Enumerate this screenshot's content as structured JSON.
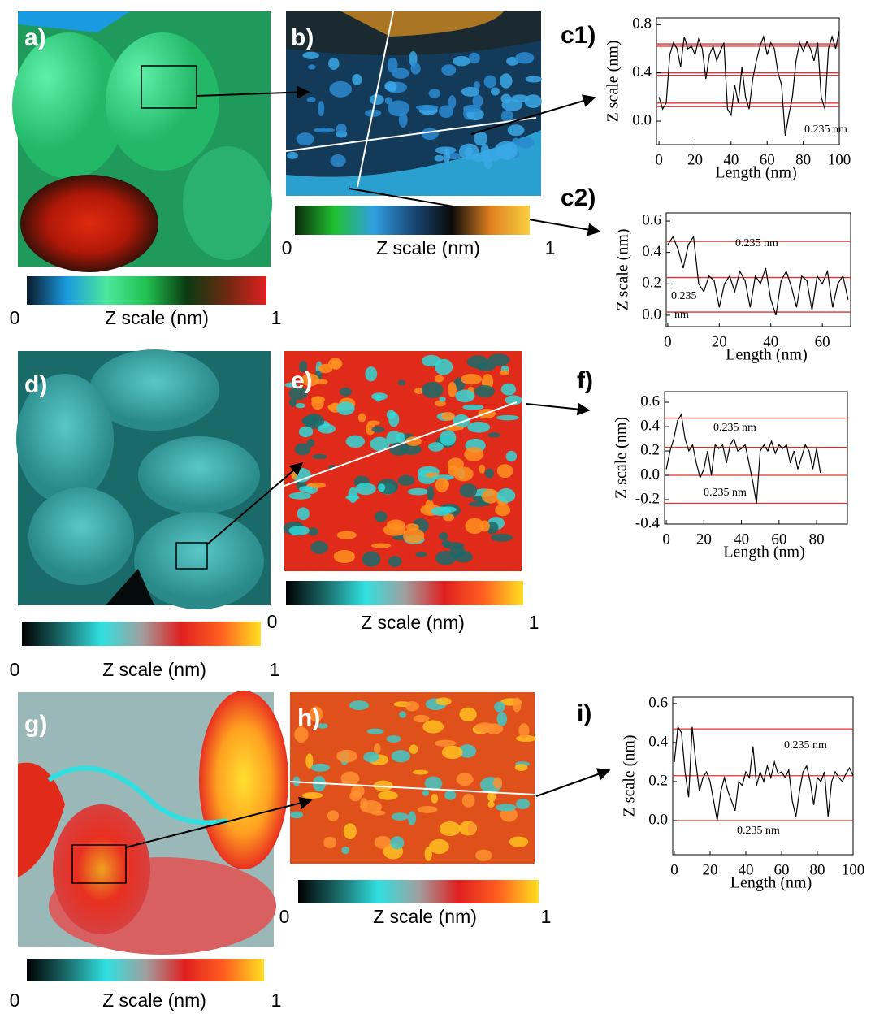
{
  "images": [
    {
      "label": "a)"
    },
    {
      "label": "b)"
    },
    {
      "label": "d)"
    },
    {
      "label": "e)"
    },
    {
      "label": "g)"
    },
    {
      "label": "h)"
    }
  ],
  "colorbars": [
    {
      "label": "Z scale (nm)",
      "ticks": [
        0,
        1
      ],
      "colors": [
        "#0a1a2a",
        "#1a9ae0",
        "#4ee89c",
        "#20c050",
        "#0a3a10",
        "#6a2a10",
        "#e02020"
      ]
    },
    {
      "label": "Z scale (nm)",
      "ticks": [
        0,
        1
      ],
      "colors": [
        "#0a2a0a",
        "#20c030",
        "#30a0e0",
        "#1a4a7a",
        "#0a0a0a",
        "#e08020",
        "#f8d040"
      ]
    },
    {
      "label": "Z scale (nm)",
      "ticks": [
        0,
        1
      ],
      "colors": [
        "#000000",
        "#1a6a6a",
        "#30e0e0",
        "#a0a0a0",
        "#e02020",
        "#ff6020",
        "#ffe020"
      ]
    },
    {
      "label": "Z scale (nm)",
      "ticks": [
        0,
        1
      ],
      "colors": [
        "#000000",
        "#1a6a6a",
        "#30e0e0",
        "#a0a0a0",
        "#e02020",
        "#ff6020",
        "#ffe020"
      ]
    },
    {
      "label": "Z scale (nm)",
      "ticks": [
        0,
        1
      ],
      "colors": [
        "#000000",
        "#1a6a6a",
        "#30e0e0",
        "#a0a0a0",
        "#e02020",
        "#ff6020",
        "#ffe020"
      ]
    },
    {
      "label": "Z scale (nm)",
      "ticks": [
        0,
        1
      ],
      "colors": [
        "#000000",
        "#1a6a6a",
        "#30e0e0",
        "#a0a0a0",
        "#e02020",
        "#ff6020",
        "#ffe020"
      ]
    }
  ],
  "chart_data": [
    {
      "type": "line",
      "label": "c1)",
      "xlabel": "Length (nm)",
      "ylabel": "Z scale (nm)",
      "x": [
        0,
        2,
        4,
        6,
        8,
        10,
        12,
        14,
        16,
        18,
        20,
        22,
        24,
        26,
        28,
        30,
        32,
        34,
        36,
        38,
        40,
        42,
        44,
        46,
        48,
        50,
        52,
        54,
        56,
        58,
        60,
        62,
        64,
        66,
        68,
        70,
        72,
        74,
        76,
        78,
        80,
        82,
        84,
        86,
        88,
        90,
        92,
        94,
        96,
        98,
        100
      ],
      "series": [
        {
          "color": "#000000",
          "values": [
            0.2,
            0.1,
            0.15,
            0.55,
            0.65,
            0.6,
            0.45,
            0.7,
            0.6,
            0.62,
            0.55,
            0.68,
            0.6,
            0.35,
            0.55,
            0.62,
            0.5,
            0.58,
            0.65,
            0.1,
            0.05,
            0.3,
            0.15,
            0.45,
            0.2,
            0.1,
            0.35,
            0.5,
            0.62,
            0.7,
            0.55,
            0.65,
            0.6,
            0.4,
            0.3,
            -0.12,
            0.05,
            0.2,
            0.5,
            0.65,
            0.58,
            0.66,
            0.6,
            0.5,
            0.65,
            0.2,
            0.1,
            0.6,
            0.7,
            0.6,
            0.75
          ]
        }
      ],
      "xlim": [
        -1.4,
        100
      ],
      "ylim": [
        -0.195,
        0.856
      ],
      "xticks": [
        0,
        20,
        40,
        60,
        80,
        100
      ],
      "yticks": [
        {
          "value": 0,
          "label": "0.0"
        },
        0.4,
        0.8
      ],
      "hlines": {
        "color": "#e03030",
        "values": [
          0.62,
          0.64,
          0.38,
          0.4,
          0.12,
          0.15
        ]
      },
      "annotations": [
        "0.235 nm"
      ]
    },
    {
      "type": "line",
      "label": "c2)",
      "xlabel": "Length (nm)",
      "ylabel": "Z scale (nm)",
      "x": [
        0,
        2,
        4,
        6,
        8,
        10,
        12,
        14,
        16,
        18,
        20,
        22,
        24,
        26,
        28,
        30,
        32,
        34,
        36,
        38,
        40,
        42,
        44,
        46,
        48,
        50,
        52,
        54,
        56,
        58,
        60,
        62,
        64,
        66,
        68,
        70
      ],
      "series": [
        {
          "color": "#000000",
          "values": [
            0.45,
            0.5,
            0.42,
            0.3,
            0.45,
            0.5,
            0.2,
            0.15,
            0.25,
            0.22,
            0.05,
            0.2,
            0.25,
            0.15,
            0.28,
            0.22,
            0.05,
            0.25,
            0.2,
            0.3,
            0.1,
            0.0,
            0.22,
            0.28,
            0.18,
            0.05,
            0.25,
            0.22,
            0.03,
            0.25,
            0.2,
            0.28,
            0.05,
            0.2,
            0.25,
            0.1
          ]
        }
      ],
      "xlim": [
        -0.6,
        71
      ],
      "ylim": [
        -0.073,
        0.652
      ],
      "xticks": [
        0,
        20,
        40,
        60
      ],
      "yticks": [
        {
          "value": 0,
          "label": "0.0"
        },
        0.2,
        0.4,
        0.6
      ],
      "hlines": {
        "color": "#e03030",
        "values": [
          0.47,
          0.24,
          0.02
        ]
      },
      "annotations": [
        "0.235 nm",
        "0.235",
        "nm"
      ]
    },
    {
      "type": "line",
      "label": "f)",
      "xlabel": "Length (nm)",
      "ylabel": "Z scale (nm)",
      "x": [
        0,
        2,
        4,
        6,
        8,
        10,
        12,
        14,
        16,
        18,
        20,
        22,
        24,
        26,
        28,
        30,
        32,
        34,
        36,
        38,
        40,
        42,
        44,
        46,
        48,
        50,
        52,
        54,
        56,
        58,
        60,
        62,
        64,
        66,
        68,
        70,
        72,
        74,
        76,
        78,
        80,
        82
      ],
      "series": [
        {
          "color": "#000000",
          "values": [
            0.05,
            0.2,
            0.3,
            0.45,
            0.5,
            0.3,
            0.2,
            0.25,
            0.1,
            -0.02,
            0.05,
            0.2,
            0.0,
            0.25,
            0.22,
            0.25,
            0.1,
            0.25,
            0.3,
            0.2,
            0.22,
            0.25,
            0.1,
            -0.05,
            -0.23,
            0.2,
            0.25,
            0.2,
            0.28,
            0.18,
            0.25,
            0.22,
            0.25,
            0.1,
            0.2,
            0.05,
            0.15,
            0.25,
            0.2,
            0.05,
            0.22,
            0.02
          ]
        }
      ],
      "xlim": [
        -0.9,
        96.4
      ],
      "ylim": [
        -0.4,
        0.687
      ],
      "xticks": [
        0,
        20,
        40,
        60,
        80
      ],
      "yticks": [
        -0.4,
        -0.2,
        {
          "value": 0,
          "label": "0.0"
        },
        0.2,
        0.4,
        0.6
      ],
      "hlines": {
        "color": "#e03030",
        "values": [
          0.47,
          0.23,
          0,
          -0.23
        ]
      },
      "annotations": [
        "0.235 nm",
        "0.235 nm"
      ]
    },
    {
      "type": "line",
      "label": "i)",
      "xlabel": "Length (nm)",
      "ylabel": "Z scale (nm)",
      "x": [
        0,
        2,
        4,
        6,
        8,
        10,
        12,
        14,
        16,
        18,
        20,
        22,
        24,
        26,
        28,
        30,
        32,
        34,
        36,
        38,
        40,
        42,
        44,
        46,
        48,
        50,
        52,
        54,
        56,
        58,
        60,
        62,
        64,
        66,
        68,
        70,
        72,
        74,
        76,
        78,
        80,
        82,
        84,
        86,
        88,
        90,
        92,
        94,
        96,
        98,
        100
      ],
      "series": [
        {
          "color": "#000000",
          "values": [
            0.3,
            0.48,
            0.45,
            0.25,
            0.12,
            0.48,
            0.3,
            0.15,
            0.22,
            0.25,
            0.2,
            0.1,
            0.0,
            0.15,
            0.22,
            0.15,
            0.1,
            0.05,
            0.2,
            0.18,
            0.25,
            0.22,
            0.38,
            0.18,
            0.25,
            0.2,
            0.28,
            0.22,
            0.3,
            0.24,
            0.25,
            0.22,
            0.26,
            0.1,
            0.02,
            0.15,
            0.25,
            0.28,
            0.2,
            0.08,
            0.22,
            0.2,
            0.25,
            0.02,
            0.2,
            0.25,
            0.22,
            0.2,
            0.24,
            0.27,
            0.23
          ]
        }
      ],
      "xlim": [
        -0.9,
        100
      ],
      "ylim": [
        -0.175,
        0.633
      ],
      "xticks": [
        0,
        20,
        40,
        60,
        80,
        100
      ],
      "yticks": [
        {
          "value": 0,
          "label": "0.0"
        },
        0.2,
        0.4,
        0.6
      ],
      "hlines": {
        "color": "#e03030",
        "values": [
          0.47,
          0.23,
          0
        ]
      },
      "annotations": [
        "0.235 nm",
        "0.235 nm"
      ]
    }
  ]
}
